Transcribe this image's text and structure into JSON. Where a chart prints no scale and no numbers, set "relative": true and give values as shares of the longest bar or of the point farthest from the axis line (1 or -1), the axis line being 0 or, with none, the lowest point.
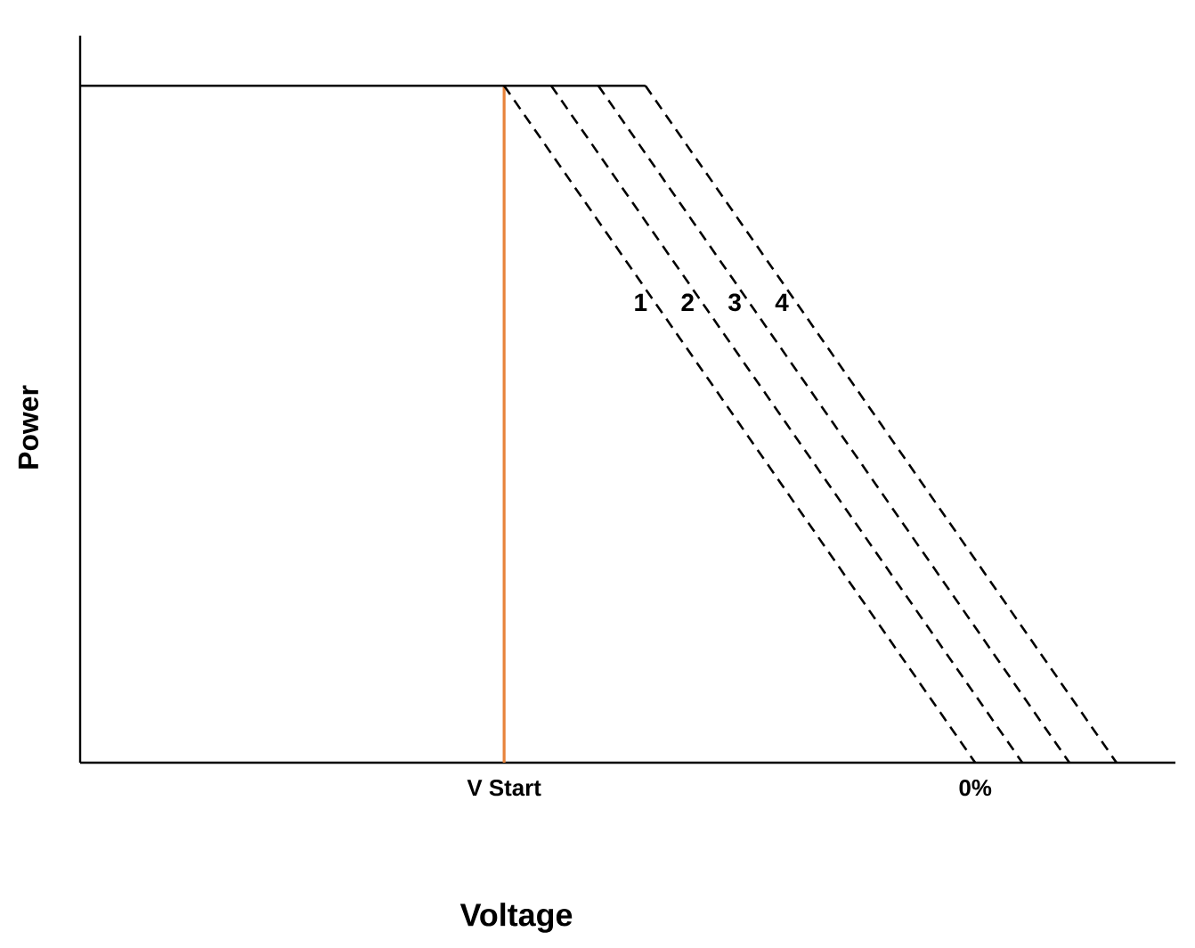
{
  "chart_data": {
    "type": "line",
    "relative": true,
    "xlabel": "Voltage",
    "ylabel": "Power",
    "categories": [
      null,
      null,
      null,
      null,
      null,
      null,
      null,
      null,
      null,
      "V Start",
      null,
      null,
      null,
      null,
      null,
      null,
      null,
      null,
      null,
      "0%",
      null,
      null,
      null,
      null
    ],
    "legend": false,
    "ref_lines": [
      {
        "axis": "x",
        "value": "V Start",
        "color": "#e8833a"
      }
    ],
    "series": [
      {
        "color": "#000000",
        "line_style": "solid",
        "values": [
          1,
          1,
          1,
          1,
          1,
          1,
          1,
          1,
          1,
          1,
          1,
          1,
          1,
          null,
          null,
          null,
          null,
          null,
          null,
          null,
          null,
          null,
          null,
          null
        ]
      },
      {
        "name": "1",
        "color": "#000000",
        "line_style": "dashed",
        "values": [
          null,
          null,
          null,
          null,
          null,
          null,
          null,
          null,
          null,
          1,
          0.9,
          0.8,
          0.7,
          0.6,
          0.5,
          0.4,
          0.3,
          0.2,
          0.1,
          0,
          null,
          null,
          null,
          null
        ]
      },
      {
        "name": "2",
        "color": "#000000",
        "line_style": "dashed",
        "values": [
          null,
          null,
          null,
          null,
          null,
          null,
          null,
          null,
          null,
          null,
          1,
          0.9,
          0.8,
          0.7,
          0.6,
          0.5,
          0.4,
          0.3,
          0.2,
          0.1,
          0,
          null,
          null,
          null
        ]
      },
      {
        "name": "3",
        "color": "#000000",
        "line_style": "dashed",
        "values": [
          null,
          null,
          null,
          null,
          null,
          null,
          null,
          null,
          null,
          null,
          null,
          1,
          0.9,
          0.8,
          0.7,
          0.6,
          0.5,
          0.4,
          0.3,
          0.2,
          0.1,
          0,
          null,
          null
        ]
      },
      {
        "name": "4",
        "color": "#000000",
        "line_style": "dashed",
        "values": [
          null,
          null,
          null,
          null,
          null,
          null,
          null,
          null,
          null,
          null,
          null,
          null,
          1,
          0.9,
          0.8,
          0.7,
          0.6,
          0.5,
          0.4,
          0.3,
          0.2,
          0.1,
          0,
          null
        ]
      }
    ]
  }
}
